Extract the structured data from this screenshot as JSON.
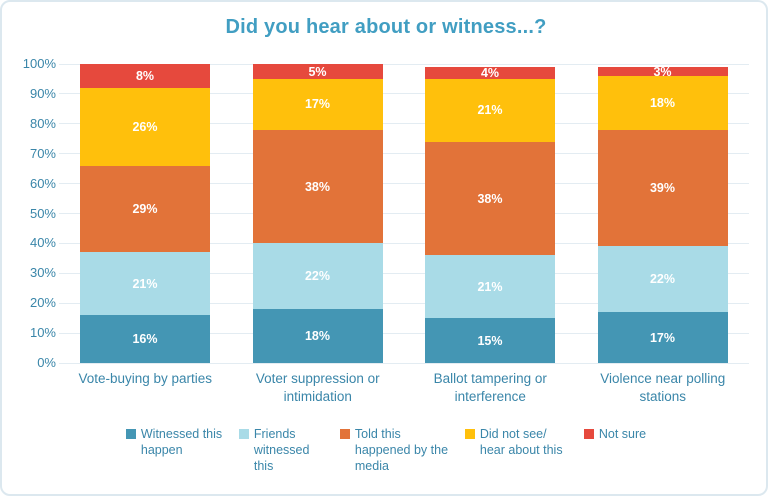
{
  "frame": {
    "background": "#ffffff",
    "border_color": "#dce8ef"
  },
  "chart_data": {
    "type": "bar",
    "stacked": true,
    "orientation": "vertical",
    "title": "Did you hear about or witness...?",
    "title_color": "#419ec2",
    "axis_text_color": "#3a86a9",
    "grid": true,
    "gridline_color": "#e3ecf2",
    "legend_position": "bottom",
    "ylim": [
      0,
      100
    ],
    "yticks": [
      "0%",
      "10%",
      "20%",
      "30%",
      "40%",
      "50%",
      "60%",
      "70%",
      "80%",
      "90%",
      "100%"
    ],
    "categories": [
      "Vote-buying by parties",
      "Voter suppression or intimidation",
      "Ballot tampering or interference",
      "Violence near polling stations"
    ],
    "series": [
      {
        "name": "Witnessed this happen",
        "color": "#4496b4",
        "values": [
          16,
          18,
          15,
          17
        ]
      },
      {
        "name": "Friends witnessed this",
        "color": "#a9dbe7",
        "values": [
          21,
          22,
          21,
          22
        ]
      },
      {
        "name": "Told this happened by the media",
        "color": "#e27339",
        "values": [
          29,
          38,
          38,
          39
        ]
      },
      {
        "name": "Did not see/ hear about this",
        "color": "#ffc00c",
        "values": [
          26,
          17,
          21,
          18
        ]
      },
      {
        "name": "Not sure",
        "color": "#e6493d",
        "values": [
          8,
          5,
          4,
          3
        ]
      }
    ],
    "data_label_suffix": "%",
    "data_label_color": "#ffffff"
  }
}
